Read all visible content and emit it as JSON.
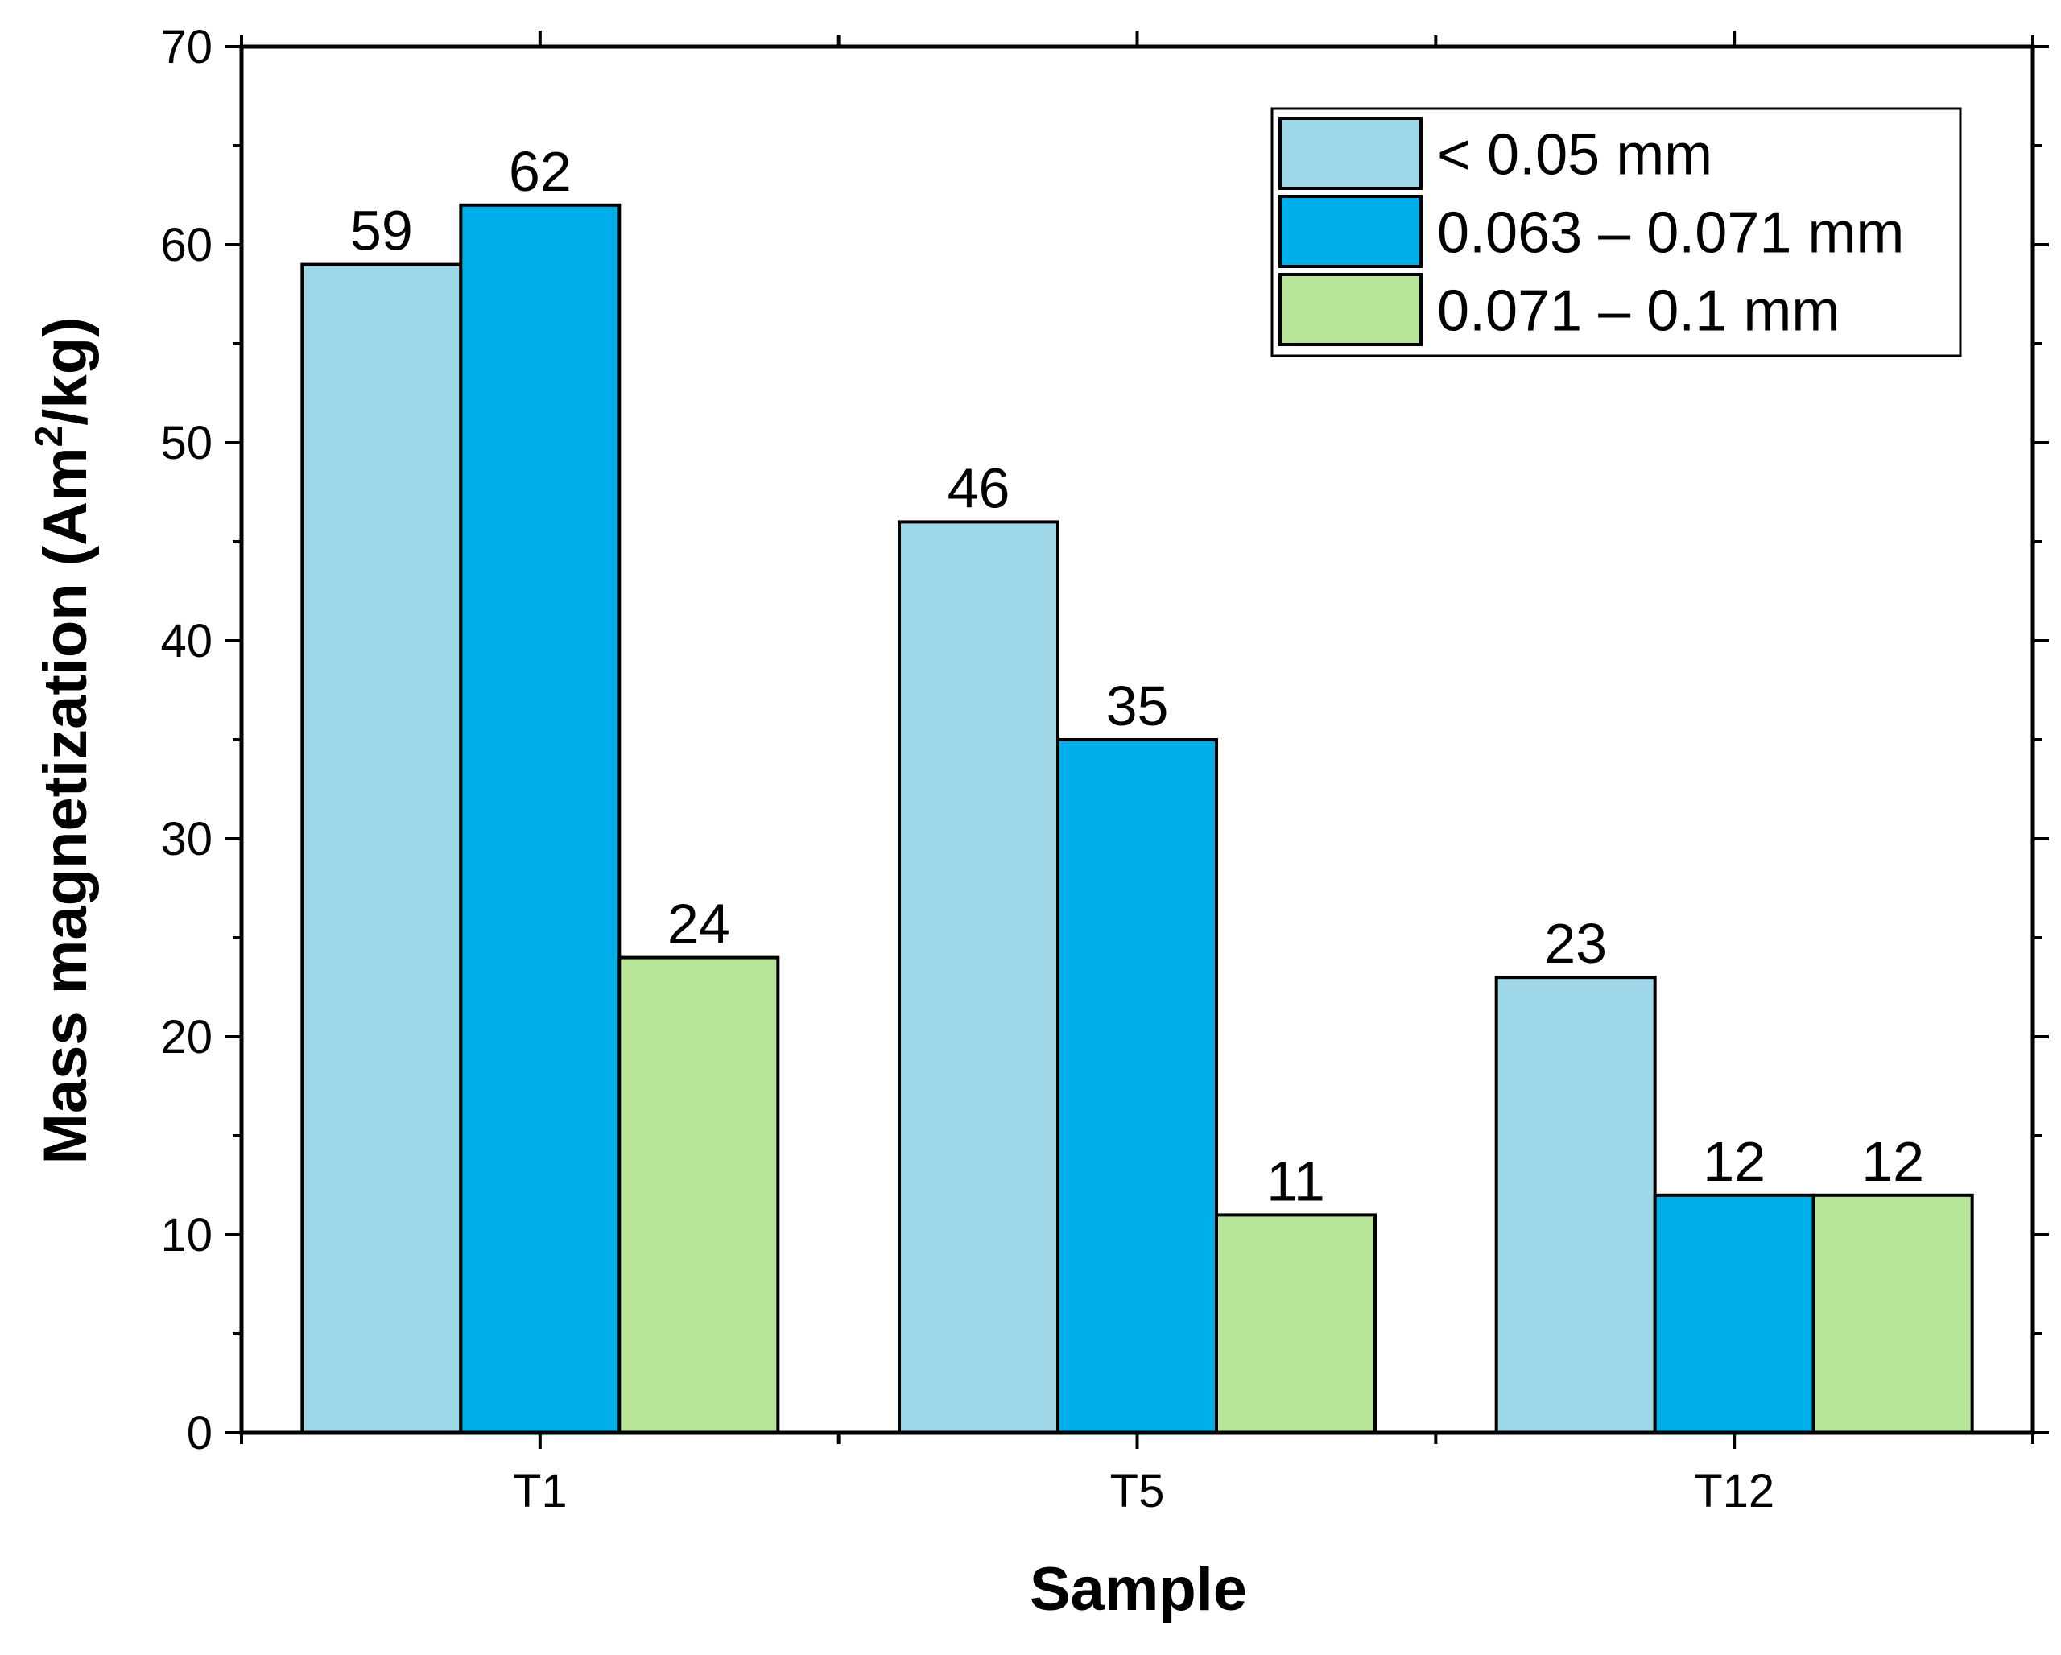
{
  "chart_data": {
    "type": "bar",
    "title": "",
    "xlabel": "Sample",
    "ylabel_main": "Mass magnetization (Am",
    "ylabel_sup": "2",
    "ylabel_tail": "/kg)",
    "categories": [
      "T1",
      "T5",
      "T12"
    ],
    "series": [
      {
        "name": "< 0.05 mm",
        "color": "#9ED8E8",
        "values": [
          59,
          46,
          23
        ]
      },
      {
        "name": "0.063 – 0.071 mm",
        "color": "#00AEEA",
        "values": [
          62,
          35,
          12
        ]
      },
      {
        "name": "0.071 – 0.1 mm",
        "color": "#B8E59A",
        "values": [
          24,
          11,
          12
        ]
      }
    ],
    "ylim": [
      0,
      70
    ],
    "y_major_ticks": [
      0,
      10,
      20,
      30,
      40,
      50,
      60,
      70
    ],
    "y_minor_step": 5,
    "grid": false,
    "legend_position": "top-right",
    "data_labels": true
  }
}
